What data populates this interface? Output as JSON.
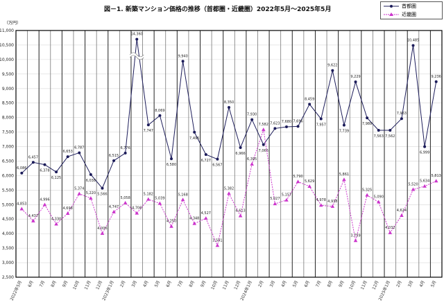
{
  "chart_data": {
    "type": "line",
    "title": "図－1. 新築マンション価格の推移（首都圏・近畿圏）2022年5月～2025年5月",
    "ylabel": "（万円）",
    "ylim": [
      2500,
      11000
    ],
    "yticks": [
      2500,
      3000,
      3500,
      4000,
      4500,
      5000,
      5500,
      6000,
      6500,
      7000,
      7500,
      8000,
      8500,
      9000,
      9500,
      10000,
      10500,
      11000
    ],
    "grid": true,
    "legend_position": "top-right",
    "categories": [
      "2022年5月",
      "6月",
      "7月",
      "8月",
      "9月",
      "10月",
      "11月",
      "12月",
      "2023年1月",
      "2月",
      "3月",
      "4月",
      "5月",
      "6月",
      "7月",
      "8月",
      "9月",
      "10月",
      "11月",
      "12月",
      "2024年1月",
      "2月",
      "3月",
      "4月",
      "5月",
      "6月",
      "7月",
      "8月",
      "9月",
      "10月",
      "11月",
      "12月",
      "2025年1月",
      "2月",
      "3月",
      "4月",
      "5月"
    ],
    "series": [
      {
        "name": "首都圏",
        "color": "#1c1c5a",
        "marker": "circle",
        "values": [
          6086,
          6457,
          6378,
          6125,
          6653,
          6787,
          6038,
          5566,
          6515,
          6776,
          14360,
          7747,
          8069,
          6580,
          9940,
          7495,
          6727,
          6567,
          8350,
          6966,
          7930,
          7066,
          7623,
          7680,
          7696,
          8459,
          7957,
          9622,
          7739,
          9229,
          7988,
          7563,
          7562,
          7963,
          10485,
          6999,
          9236
        ]
      },
      {
        "name": "近畿圏",
        "color": "#cc33cc",
        "marker": "triangle",
        "values": [
          4853,
          4437,
          4996,
          4330,
          4698,
          5374,
          5220,
          4006,
          4747,
          5058,
          4706,
          5182,
          5039,
          4250,
          5168,
          4348,
          4527,
          3591,
          5382,
          4613,
          6395,
          7582,
          5027,
          5157,
          5790,
          5629,
          4978,
          4938,
          5861,
          3759,
          5325,
          5090,
          4032,
          4624,
          5520,
          5634,
          5813
        ]
      }
    ]
  }
}
